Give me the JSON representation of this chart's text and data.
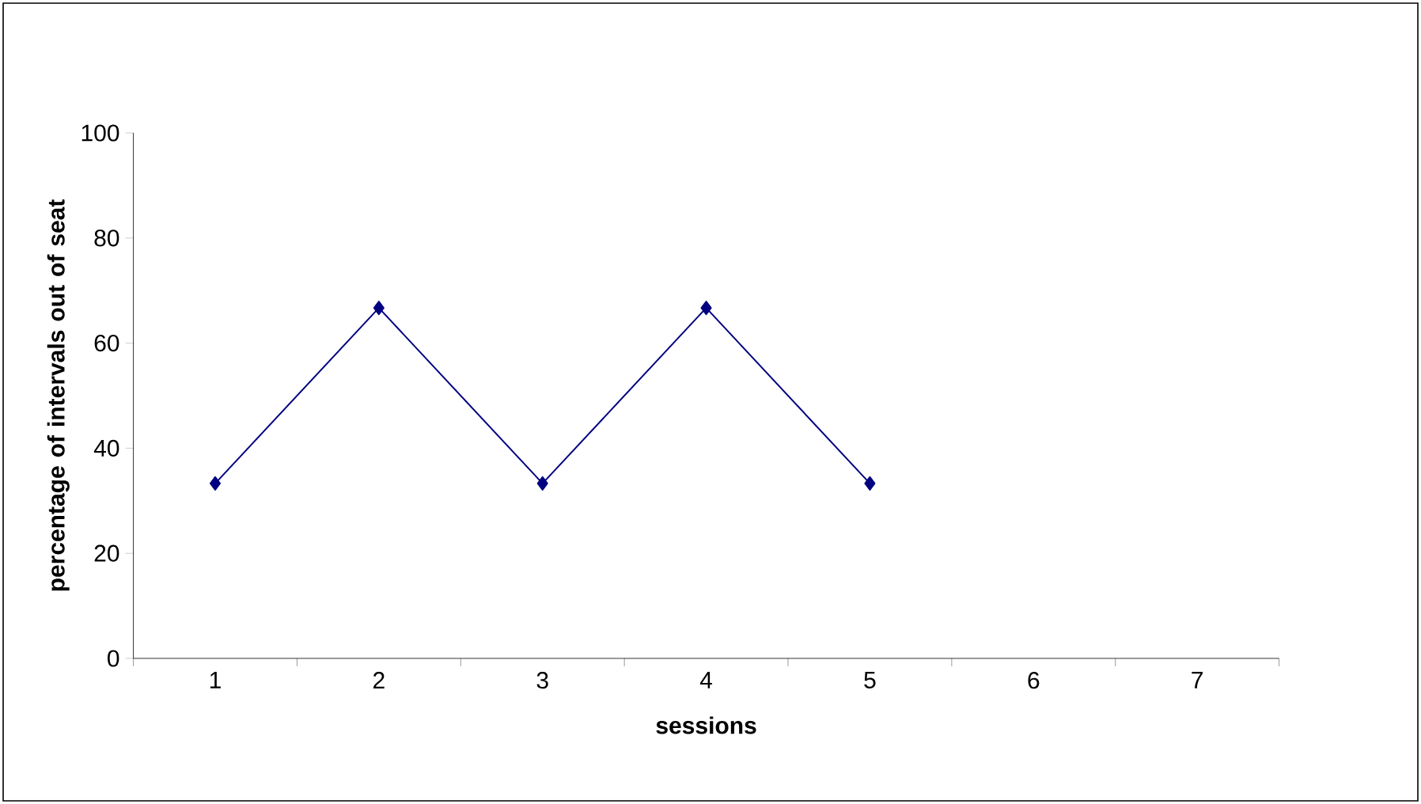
{
  "chart_data": {
    "type": "line",
    "xlabel": "sessions",
    "ylabel": "percentage of intervals out of seat",
    "categories": [
      "1",
      "2",
      "3",
      "4",
      "5",
      "6",
      "7"
    ],
    "series": [
      {
        "color": "#000080",
        "values": [
          33.3,
          66.7,
          33.3,
          66.7,
          33.3,
          null,
          null
        ]
      }
    ],
    "ylim": [
      0,
      100
    ],
    "yticks": [
      0,
      20,
      40,
      60,
      80,
      100
    ],
    "marker": "diamond",
    "line_style": "solid",
    "grid": false
  }
}
